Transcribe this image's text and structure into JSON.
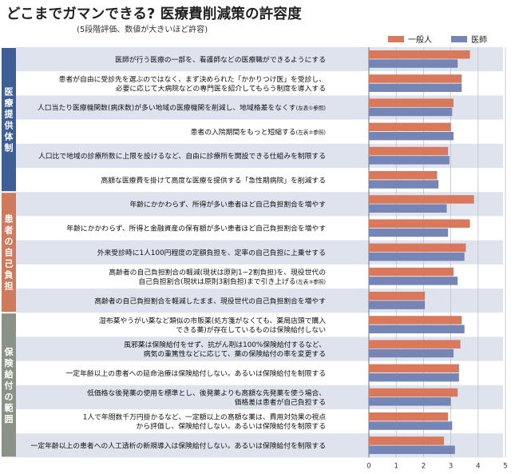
{
  "title": "どこまでガマンできる? 医療費削減策の許容度",
  "subtitle": "(5段階評価、数値が大きいほど許容)",
  "colors": {
    "general": "#d9785a",
    "doctor": "#7586b6",
    "grp1": "#3d5f95",
    "grp2": "#cf7a5d",
    "grp3": "#8a9185",
    "row_shade": "#dfe3ed"
  },
  "chart_data": {
    "type": "bar",
    "orientation": "horizontal",
    "xlim": [
      0,
      5
    ],
    "xticks": [
      "0",
      "1",
      "2",
      "3",
      "4",
      "5"
    ],
    "grid": true,
    "legend_position": "top-right",
    "series": [
      {
        "name": "一般人",
        "values": [
          3.7,
          3.4,
          3.1,
          3.0,
          2.9,
          2.5,
          3.85,
          3.7,
          3.55,
          3.1,
          2.05,
          3.4,
          3.35,
          3.3,
          3.25,
          2.9,
          2.75
        ]
      },
      {
        "name": "医師",
        "values": [
          3.25,
          3.4,
          3.05,
          3.1,
          2.95,
          2.55,
          2.85,
          2.9,
          3.5,
          3.25,
          2.05,
          3.5,
          3.1,
          3.3,
          3.0,
          3.05,
          3.15
        ]
      }
    ],
    "groups": [
      {
        "label": "医療提供体制",
        "start": 0,
        "end": 5
      },
      {
        "label": "患者の自己負担",
        "start": 6,
        "end": 10
      },
      {
        "label": "保険給付の範囲",
        "start": 11,
        "end": 16
      }
    ],
    "categories": [
      {
        "lines": [
          {
            "text": "医師が行う医療の一部を、看護師などの医療職ができるようにする"
          }
        ]
      },
      {
        "lines": [
          {
            "text": "患者が自由に受診先を選ぶのではなく、まず決められた「かかりつけ医」を受診し、"
          },
          {
            "text": "必要に応じて大病院などの専門医を紹介してもらう制度を導入する"
          }
        ]
      },
      {
        "lines": [
          {
            "text": "人口当たり医療機関数(病床数)が多い地域の医療機関を削減し、地域格差をなくす",
            "note": "(左表①参照)"
          }
        ]
      },
      {
        "lines": [
          {
            "text": "患者の入院期間をもっと短縮する",
            "note": "(左表②参照)"
          }
        ]
      },
      {
        "lines": [
          {
            "text": "人口比で地域の診療所数に上限を設けるなど、自由に診療所を開設できる仕組みを制限する"
          }
        ]
      },
      {
        "lines": [
          {
            "text": "高額な医療費を掛けて高度な医療を提供する「急性期病院」を削減する"
          }
        ]
      },
      {
        "lines": [
          {
            "text": "年齢にかかわらず、所得が多い患者ほど自己負担割合を増やす"
          }
        ]
      },
      {
        "lines": [
          {
            "text": "年齢にかかわらず、所得と金融資産の保有額が多い患者ほど自己負担割合を増やす"
          }
        ]
      },
      {
        "lines": [
          {
            "text": "外来受診時に1人100円程度の定額負担を、定率の自己負担に上乗せする"
          }
        ]
      },
      {
        "lines": [
          {
            "text": "高齢者の自己負担割合の軽減(現状は原則1~2割負担)を、現役世代の"
          },
          {
            "text": "自己負担割合(現状は原則3割負担)まで引き上げる",
            "note": "(左表③参照)"
          }
        ]
      },
      {
        "lines": [
          {
            "text": "高齢者の自己負担割合を軽減したまま、現役世代の自己負担割合を増やす"
          }
        ]
      },
      {
        "lines": [
          {
            "text": "湿布薬やうがい薬など類似の市販薬(処方箋がなくても、薬局店頭で購入"
          },
          {
            "text": "できる薬)が存在しているものは保険給付しない"
          }
        ]
      },
      {
        "lines": [
          {
            "text": "風邪薬は保険給付をせず、抗がん剤は100%保険給付するなど、"
          },
          {
            "text": "病気の重篤性などに応じて、薬の保険給付の率を変更する"
          }
        ]
      },
      {
        "lines": [
          {
            "text": "一定年齢以上の患者への延命治療は保険給付しない。あるいは保険給付を制限する"
          }
        ]
      },
      {
        "lines": [
          {
            "text": "低価格な後発薬の使用を標準とし、後発薬よりも高額な先発薬を使う場合、"
          },
          {
            "text": "価格差は患者が自己負担する"
          }
        ]
      },
      {
        "lines": [
          {
            "text": "1人で年間数千万円掛かるなど、一定額以上の高額な薬は、費用対効果の視点"
          },
          {
            "text": "から評価し、保険給付しない。あるいは保険給付を制限する"
          }
        ]
      },
      {
        "lines": [
          {
            "text": "一定年齢以上の患者への人工透析の新規導入は保険給付しない。あるいは保険給付を制限する"
          }
        ]
      }
    ]
  }
}
